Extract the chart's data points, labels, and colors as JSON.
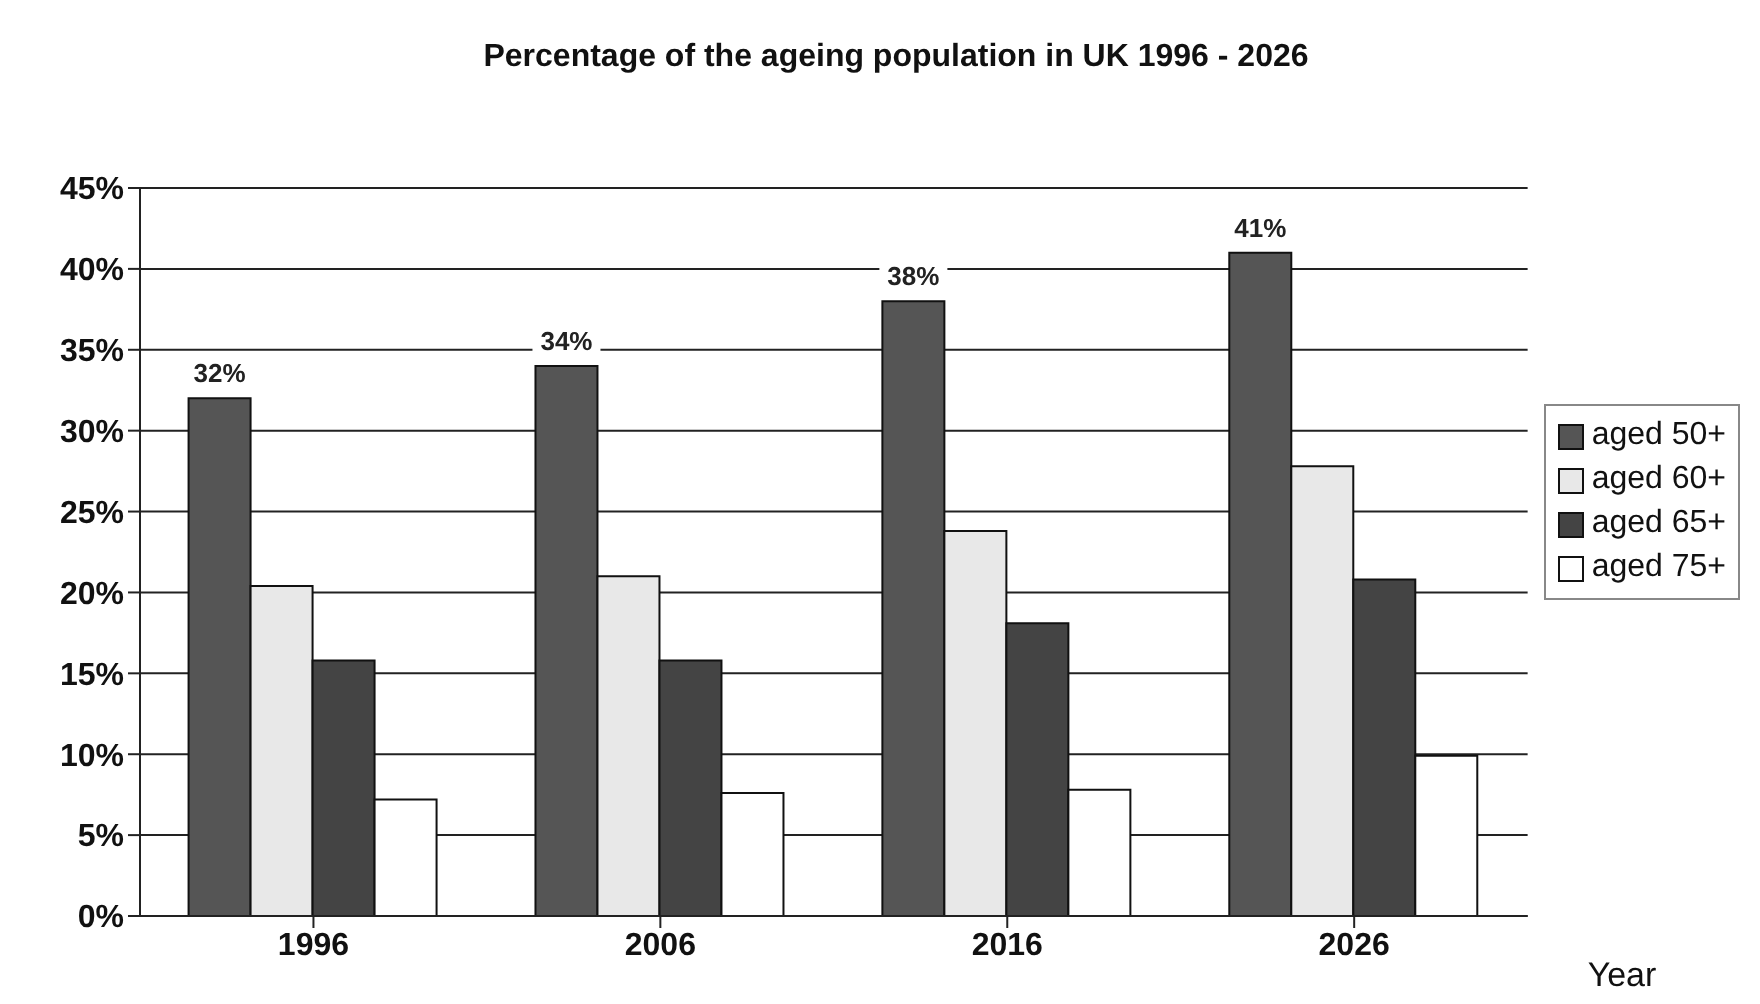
{
  "chart_data": {
    "type": "bar",
    "title": "Percentage of the ageing population in UK 1996 - 2026",
    "xlabel": "Year",
    "categories": [
      "1996",
      "2006",
      "2016",
      "2026"
    ],
    "series": [
      {
        "name": "aged 50+",
        "color": "#555555",
        "values": [
          32,
          34,
          38,
          41
        ],
        "value_labels": [
          "32%",
          "34%",
          "38%",
          "41%"
        ]
      },
      {
        "name": "aged 60+",
        "color": "#e8e8e8",
        "values": [
          20.4,
          21,
          23.8,
          27.8
        ]
      },
      {
        "name": "aged 65+",
        "color": "#444444",
        "values": [
          15.8,
          15.8,
          18.1,
          20.8
        ]
      },
      {
        "name": "aged 75+",
        "color": "#ffffff",
        "values": [
          7.2,
          7.6,
          7.8,
          9.9
        ]
      }
    ],
    "ylim": [
      0,
      45
    ],
    "yticks": [
      {
        "value": 0,
        "label": "0%"
      },
      {
        "value": 5,
        "label": "5%"
      },
      {
        "value": 10,
        "label": "10%"
      },
      {
        "value": 15,
        "label": "15%"
      },
      {
        "value": 20,
        "label": "20%"
      },
      {
        "value": 25,
        "label": "25%"
      },
      {
        "value": 30,
        "label": "30%"
      },
      {
        "value": 35,
        "label": "35%"
      },
      {
        "value": 40,
        "label": "40%"
      },
      {
        "value": 45,
        "label": "45%"
      }
    ],
    "grid": "y",
    "legend": "right"
  }
}
